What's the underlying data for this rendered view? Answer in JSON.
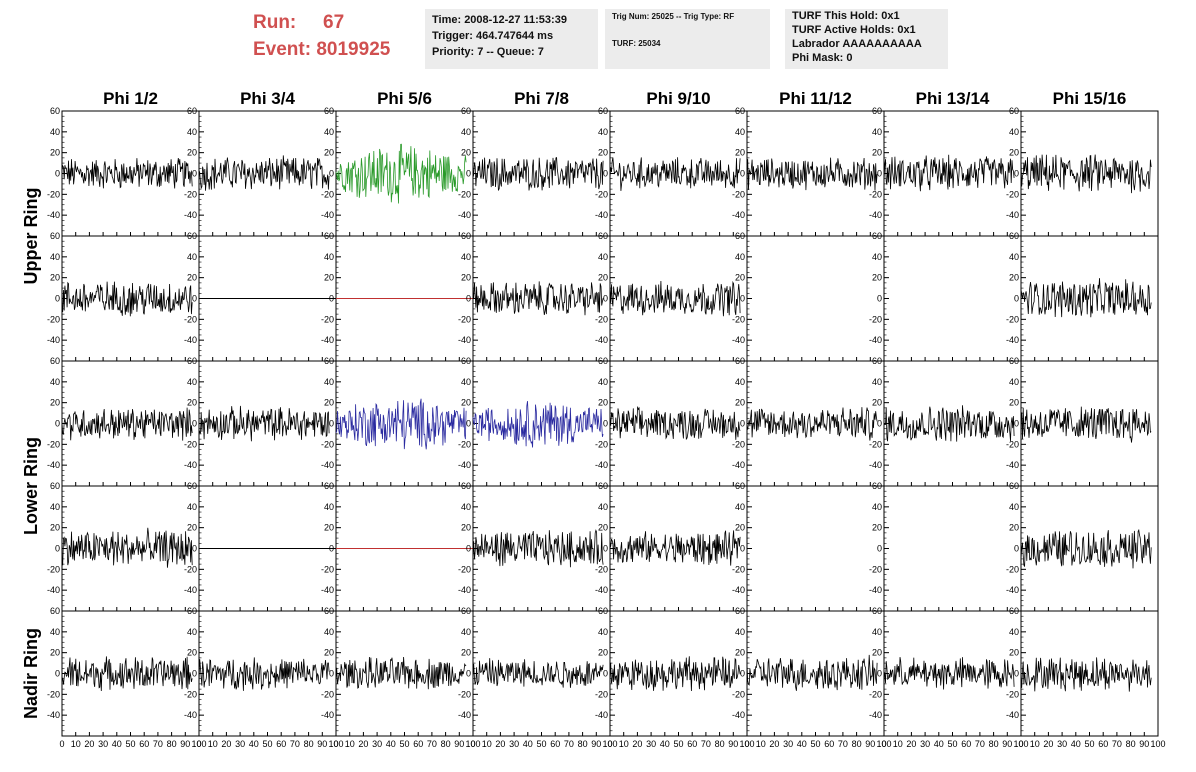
{
  "header": {
    "run_label": "Run:",
    "run_value": "67",
    "event_label": "Event:",
    "event_value": "8019925",
    "box1": [
      "Time: 2008-12-27 11:53:39",
      "Trigger: 464.747644 ms",
      "Priority: 7 -- Queue: 7"
    ],
    "box2": [
      "Trig Num: 25025 -- Trig Type: RF",
      "TURF: 25034"
    ],
    "box3": [
      "TURF This Hold: 0x1",
      "TURF Active Holds: 0x1",
      "Labrador AAAAAAAAAA",
      "Phi Mask: 0"
    ]
  },
  "chart_data": {
    "type": "line",
    "columns": [
      "Phi 1/2",
      "Phi 3/4",
      "Phi 5/6",
      "Phi 7/8",
      "Phi 9/10",
      "Phi 11/12",
      "Phi 13/14",
      "Phi 15/16"
    ],
    "ring_labels": [
      {
        "label": "Upper Ring",
        "rows": [
          0,
          1
        ]
      },
      {
        "label": "Lower Ring",
        "rows": [
          2,
          3
        ]
      },
      {
        "label": "Nadir Ring",
        "rows": [
          4,
          4
        ]
      }
    ],
    "ylim": [
      -60,
      60
    ],
    "yticks": [
      -40,
      -20,
      0,
      20,
      40,
      60
    ],
    "xlim": [
      0,
      100
    ],
    "xticks": [
      0,
      10,
      20,
      30,
      40,
      50,
      60,
      70,
      80,
      90,
      100
    ],
    "samples": 90,
    "colors": {
      "normal": "#000000",
      "upper_trigger": "#2a9a2a",
      "lower_trigger": "#2a2aa0",
      "flat": "#c03030"
    },
    "panels": [
      {
        "row": 0,
        "col": 0,
        "style": "normal",
        "amp": 13
      },
      {
        "row": 0,
        "col": 1,
        "style": "normal",
        "amp": 14
      },
      {
        "row": 0,
        "col": 2,
        "style": "upper_trigger",
        "amp": 20
      },
      {
        "row": 0,
        "col": 3,
        "style": "normal",
        "amp": 14
      },
      {
        "row": 0,
        "col": 4,
        "style": "normal",
        "amp": 13
      },
      {
        "row": 0,
        "col": 5,
        "style": "normal",
        "amp": 13
      },
      {
        "row": 0,
        "col": 6,
        "style": "normal",
        "amp": 15
      },
      {
        "row": 0,
        "col": 7,
        "style": "normal",
        "amp": 16
      },
      {
        "row": 1,
        "col": 0,
        "style": "normal",
        "amp": 15
      },
      {
        "row": 1,
        "col": 1,
        "style": "flat_black",
        "amp": 0
      },
      {
        "row": 1,
        "col": 2,
        "style": "flat",
        "amp": 0
      },
      {
        "row": 1,
        "col": 3,
        "style": "normal",
        "amp": 14
      },
      {
        "row": 1,
        "col": 4,
        "style": "normal",
        "amp": 14
      },
      {
        "row": 1,
        "col": 5,
        "style": "empty",
        "amp": 0
      },
      {
        "row": 1,
        "col": 6,
        "style": "empty",
        "amp": 0
      },
      {
        "row": 1,
        "col": 7,
        "style": "normal",
        "amp": 16
      },
      {
        "row": 2,
        "col": 0,
        "style": "normal",
        "amp": 13
      },
      {
        "row": 2,
        "col": 1,
        "style": "normal",
        "amp": 14
      },
      {
        "row": 2,
        "col": 2,
        "style": "lower_trigger",
        "amp": 18
      },
      {
        "row": 2,
        "col": 3,
        "style": "lower_trigger",
        "amp": 16
      },
      {
        "row": 2,
        "col": 4,
        "style": "normal",
        "amp": 13
      },
      {
        "row": 2,
        "col": 5,
        "style": "normal",
        "amp": 14
      },
      {
        "row": 2,
        "col": 6,
        "style": "normal",
        "amp": 15
      },
      {
        "row": 2,
        "col": 7,
        "style": "normal",
        "amp": 15
      },
      {
        "row": 3,
        "col": 0,
        "style": "normal",
        "amp": 16
      },
      {
        "row": 3,
        "col": 1,
        "style": "flat_black",
        "amp": 0
      },
      {
        "row": 3,
        "col": 2,
        "style": "flat",
        "amp": 0
      },
      {
        "row": 3,
        "col": 3,
        "style": "normal",
        "amp": 15
      },
      {
        "row": 3,
        "col": 4,
        "style": "normal",
        "amp": 14
      },
      {
        "row": 3,
        "col": 5,
        "style": "empty",
        "amp": 0
      },
      {
        "row": 3,
        "col": 6,
        "style": "empty",
        "amp": 0
      },
      {
        "row": 3,
        "col": 7,
        "style": "normal",
        "amp": 16
      },
      {
        "row": 4,
        "col": 0,
        "style": "normal",
        "amp": 14
      },
      {
        "row": 4,
        "col": 1,
        "style": "normal",
        "amp": 13
      },
      {
        "row": 4,
        "col": 2,
        "style": "normal",
        "amp": 13
      },
      {
        "row": 4,
        "col": 3,
        "style": "normal",
        "amp": 12
      },
      {
        "row": 4,
        "col": 4,
        "style": "normal",
        "amp": 14
      },
      {
        "row": 4,
        "col": 5,
        "style": "normal",
        "amp": 14
      },
      {
        "row": 4,
        "col": 6,
        "style": "normal",
        "amp": 13
      },
      {
        "row": 4,
        "col": 7,
        "style": "normal",
        "amp": 14
      }
    ]
  }
}
